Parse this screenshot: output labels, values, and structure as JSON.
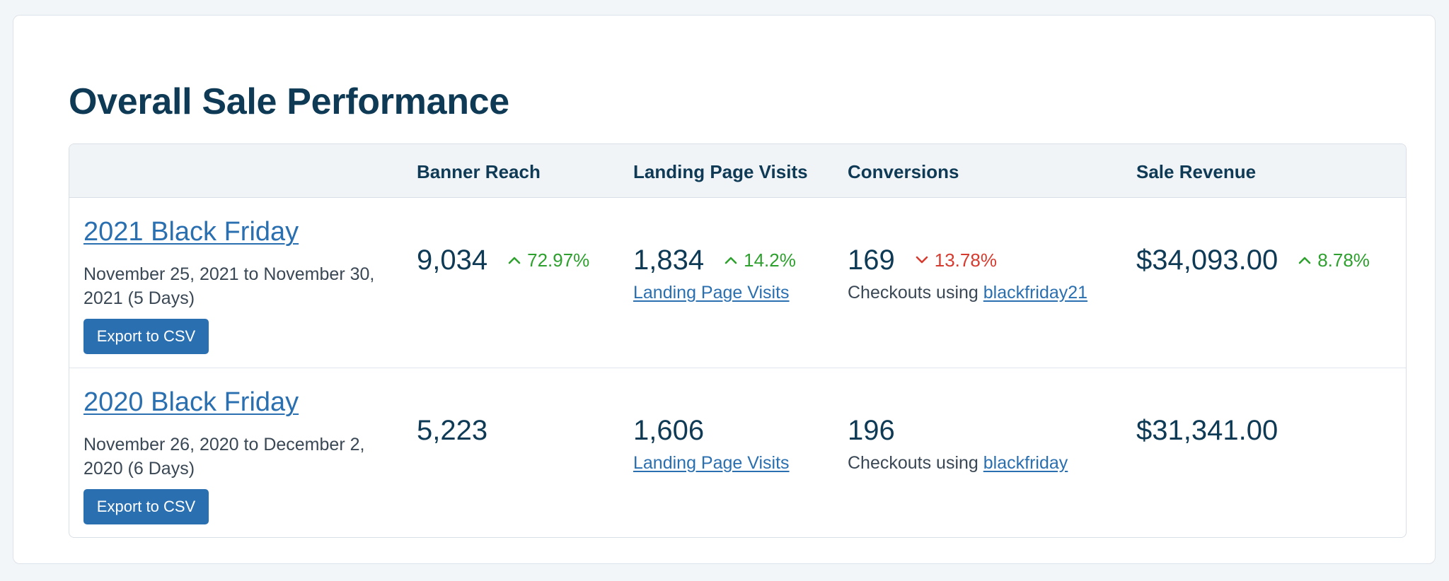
{
  "page": {
    "title": "Overall Sale Performance"
  },
  "table": {
    "headers": {
      "sale": "",
      "banner_reach": "Banner Reach",
      "landing_page_visits": "Landing Page Visits",
      "conversions": "Conversions",
      "sale_revenue": "Sale Revenue"
    },
    "rows": [
      {
        "name": "2021 Black Friday",
        "dates": "November 25, 2021 to November 30, 2021 (5 Days)",
        "export_label": "Export to CSV",
        "banner_reach": "9,034",
        "banner_reach_delta": "72.97%",
        "landing_page_visits": "1,834",
        "landing_page_visits_delta": "14.2%",
        "landing_page_visits_link": "Landing Page Visits",
        "conversions": "169",
        "conversions_delta": "13.78%",
        "checkouts_prefix": "Checkouts using ",
        "coupon_code": "blackfriday21",
        "sale_revenue": "$34,093.00",
        "sale_revenue_delta": "8.78%"
      },
      {
        "name": "2020 Black Friday",
        "dates": "November 26, 2020 to December 2, 2020 (6 Days)",
        "export_label": "Export to CSV",
        "banner_reach": "5,223",
        "landing_page_visits": "1,606",
        "landing_page_visits_link": "Landing Page Visits",
        "conversions": "196",
        "checkouts_prefix": "Checkouts using ",
        "coupon_code": "blackfriday",
        "sale_revenue": "$31,341.00"
      }
    ]
  },
  "icons": {
    "up": "chevron-up-icon",
    "down": "chevron-down-icon"
  },
  "colors": {
    "accent": "#2a6fb0",
    "title": "#0e3a55",
    "positive": "#2ea02e",
    "negative": "#d63b2f",
    "header_bg": "#f1f4f7"
  }
}
